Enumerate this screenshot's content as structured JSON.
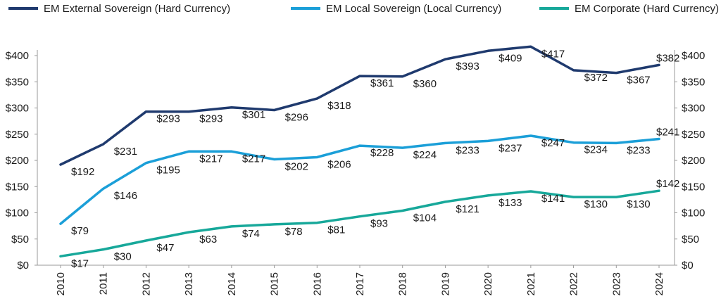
{
  "chart_data": {
    "type": "line",
    "title": "",
    "xlabel": "",
    "ylabel": "",
    "categories": [
      "2010",
      "2011",
      "2012",
      "2013",
      "2014",
      "2015",
      "2016",
      "2017",
      "2018",
      "2019",
      "2020",
      "2021",
      "2022",
      "2023",
      "2024"
    ],
    "ylim": [
      0,
      400
    ],
    "yticks": [
      0,
      50,
      100,
      150,
      200,
      250,
      300,
      350,
      400
    ],
    "ytick_labels": [
      "$0",
      "$50",
      "$100",
      "$150",
      "$200",
      "$250",
      "$300",
      "$350",
      "$400"
    ],
    "legend_position": "top",
    "series": [
      {
        "name": "EM External Sovereign (Hard Currency)",
        "color": "#1f3a6e",
        "values": [
          192,
          231,
          293,
          293,
          301,
          296,
          318,
          361,
          360,
          393,
          409,
          417,
          372,
          367,
          382
        ],
        "labels": [
          "$192",
          "$231",
          "$293",
          "$293",
          "$301",
          "$296",
          "$318",
          "$361",
          "$360",
          "$393",
          "$409",
          "$417",
          "$372",
          "$367",
          "$382"
        ]
      },
      {
        "name": "EM Local Sovereign (Local Currency)",
        "color": "#1b9fd8",
        "values": [
          79,
          146,
          195,
          217,
          217,
          202,
          206,
          228,
          224,
          233,
          237,
          247,
          234,
          233,
          241
        ],
        "labels": [
          "$79",
          "$146",
          "$195",
          "$217",
          "$217",
          "$202",
          "$206",
          "$228",
          "$224",
          "$233",
          "$237",
          "$247",
          "$234",
          "$233",
          "$241"
        ]
      },
      {
        "name": "EM Corporate (Hard Currency)",
        "color": "#17a89a",
        "values": [
          17,
          30,
          47,
          63,
          74,
          78,
          81,
          93,
          104,
          121,
          133,
          141,
          130,
          130,
          142
        ],
        "labels": [
          "$17",
          "$30",
          "$47",
          "$63",
          "$74",
          "$78",
          "$81",
          "$93",
          "$104",
          "$121",
          "$133",
          "$141",
          "$130",
          "$130",
          "$142"
        ]
      }
    ]
  }
}
